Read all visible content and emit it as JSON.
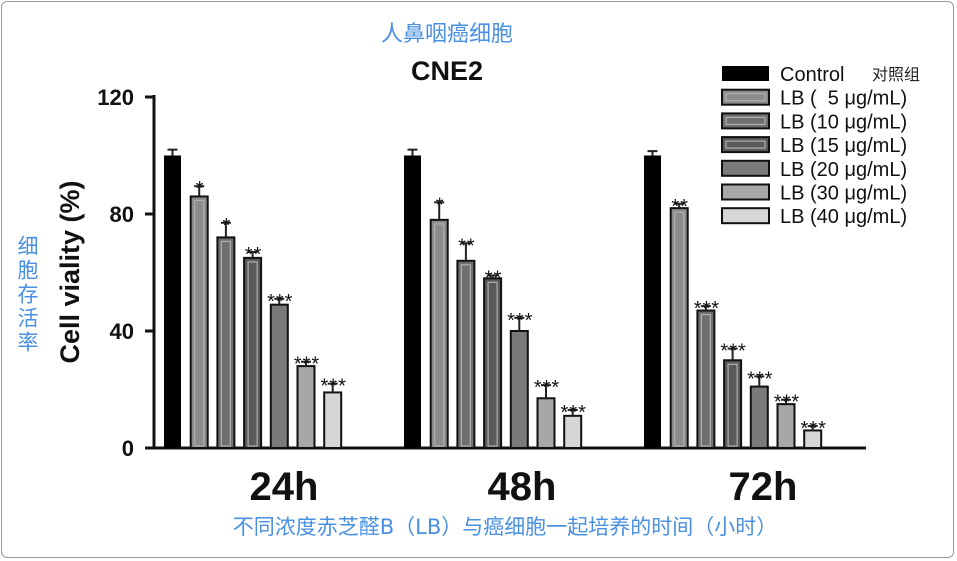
{
  "annotations": {
    "title_cn": "人鼻咽癌细胞",
    "ylabel_cn": "细胞存活率",
    "xlabel_cn": "不同浓度赤芝醛B（LB）与癌细胞一起培养的时间（小时）",
    "control_cn": "对照组"
  },
  "colors": {
    "annotation": "#4a90e2",
    "series": [
      "#000000",
      "#8c8c8c",
      "#6f6f6f",
      "#5a5a5a",
      "#7a7a7a",
      "#a7a7aa",
      "#d6d6d6"
    ],
    "axis": "#111111"
  },
  "chart_data": {
    "type": "bar",
    "title": "CNE2",
    "xlabel": "",
    "ylabel": "Cell viality (%)",
    "ylim": [
      0,
      120
    ],
    "yticks": [
      0,
      40,
      80,
      120
    ],
    "categories": [
      "24h",
      "48h",
      "72h"
    ],
    "legend_position": "top-right",
    "series": [
      {
        "name": "Control",
        "values": [
          100,
          100,
          100
        ],
        "errors": [
          2,
          2,
          1.5
        ],
        "sig": [
          "",
          "",
          ""
        ]
      },
      {
        "name": "LB (  5 μg/mL)",
        "values": [
          86,
          78,
          82
        ],
        "errors": [
          3.5,
          6,
          1.5
        ],
        "sig": [
          "*",
          "*",
          "**"
        ]
      },
      {
        "name": "LB (10 μg/mL)",
        "values": [
          72,
          64,
          47
        ],
        "errors": [
          5,
          6,
          1.5
        ],
        "sig": [
          "*",
          "**",
          "***"
        ]
      },
      {
        "name": "LB (15 μg/mL)",
        "values": [
          65,
          58,
          30
        ],
        "errors": [
          2,
          1,
          4
        ],
        "sig": [
          "**",
          "**",
          "***"
        ]
      },
      {
        "name": "LB (20 μg/mL)",
        "values": [
          49,
          40,
          21
        ],
        "errors": [
          2,
          4.5,
          3.5
        ],
        "sig": [
          "***",
          "***",
          "***"
        ]
      },
      {
        "name": "LB (30 μg/mL)",
        "values": [
          28,
          17,
          15
        ],
        "errors": [
          1.5,
          4.5,
          1.5
        ],
        "sig": [
          "***",
          "***",
          "***"
        ]
      },
      {
        "name": "LB (40 μg/mL)",
        "values": [
          19,
          11,
          6
        ],
        "errors": [
          3,
          2,
          1.5
        ],
        "sig": [
          "***",
          "***",
          "***"
        ]
      }
    ]
  }
}
